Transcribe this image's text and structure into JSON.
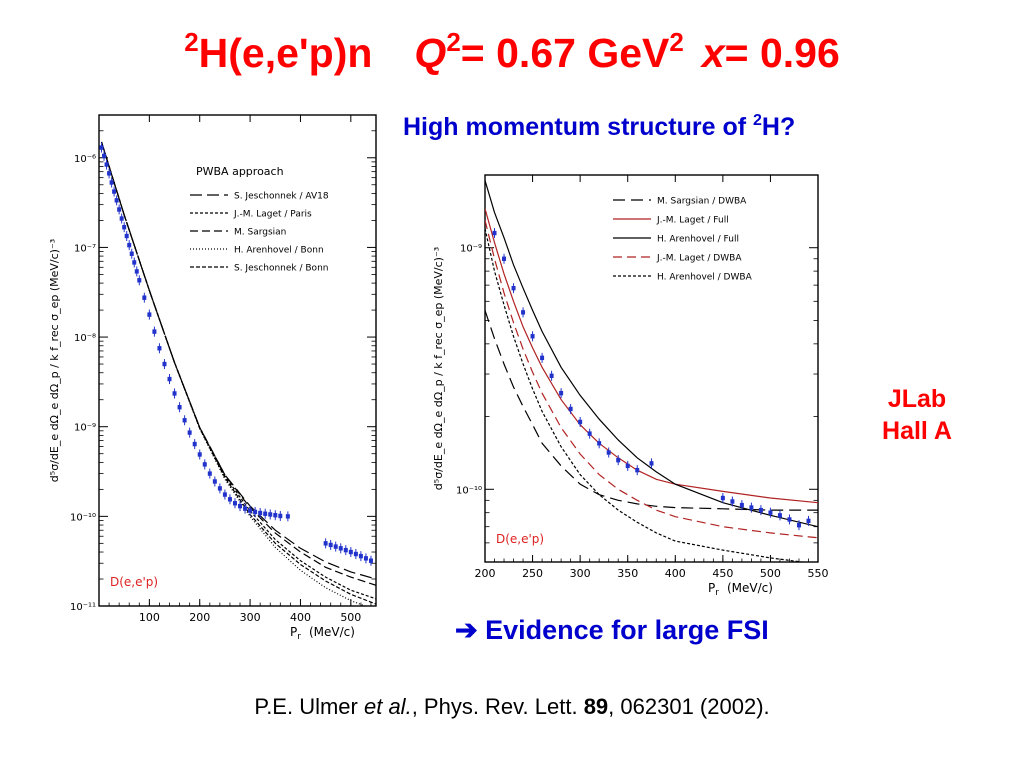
{
  "slide": {
    "title": {
      "pre_sup": "2",
      "reaction": "H(e,e'p)n",
      "q_symbol": "Q",
      "q_sup": "2",
      "q_value": "= 0.67 GeV",
      "q_unit_sup": "2",
      "x_symbol": "x",
      "x_value": "= 0.96"
    },
    "subtitle": {
      "text": "High momentum structure of ",
      "sup": "2",
      "tail": "H?"
    },
    "lab_line1": "JLab",
    "lab_line2": "Hall A",
    "conclusion": {
      "arrow": "➔",
      "text": " Evidence for large FSI"
    },
    "citation": {
      "authors": "P.E. Ulmer ",
      "etal": "et al.",
      "journal": ", Phys. Rev. Lett. ",
      "volume": "89",
      "rest": ", 062301 (2002)."
    }
  },
  "colors": {
    "title_red": "#ff0000",
    "text_blue": "#0000cc",
    "data_blue": "#2233cc",
    "laget_red": "#b22222"
  },
  "chart_data": [
    {
      "type": "line",
      "log_y": true,
      "title": "PWBA approach",
      "xlabel": "P",
      "xlabel_sub": "r",
      "xlabel_unit": "(MeV/c)",
      "ylabel": "d⁵σ/dE_e dΩ_e dΩ_p / k f_rec σ_ep   (MeV/c)⁻³",
      "xlim": [
        0,
        550
      ],
      "ylim": [
        1e-11,
        3e-06
      ],
      "x_ticks": [
        100,
        200,
        300,
        400,
        500
      ],
      "y_ticks": [
        {
          "value": 1e-11,
          "label": "10⁻¹¹"
        },
        {
          "value": 1e-10,
          "label": "10⁻¹⁰"
        },
        {
          "value": 1e-09,
          "label": "10⁻⁹"
        },
        {
          "value": 1e-08,
          "label": "10⁻⁸"
        },
        {
          "value": 1e-07,
          "label": "10⁻⁷"
        },
        {
          "value": 1e-06,
          "label": "10⁻⁶"
        }
      ],
      "corner_label": "D(e,e'p)",
      "legend": "top-right",
      "series": [
        {
          "name": "S. Jeschonnek / AV18",
          "dash": "12,5",
          "x": [
            5,
            50,
            100,
            150,
            200,
            250,
            300,
            350,
            400,
            450,
            500,
            550
          ],
          "y": [
            1.5e-06,
            2.3e-07,
            3.3e-08,
            5.2e-09,
            9.8e-10,
            2.9e-10,
            1.3e-10,
            7e-11,
            4.4e-11,
            3.1e-11,
            2.4e-11,
            2e-11
          ]
        },
        {
          "name": "J.-M. Laget / Paris",
          "dash": "3,2",
          "x": [
            5,
            50,
            100,
            150,
            200,
            250,
            300,
            350,
            400,
            450,
            500,
            550
          ],
          "y": [
            1.5e-06,
            2.3e-07,
            3.3e-08,
            5.2e-09,
            9.8e-10,
            2.8e-10,
            1.15e-10,
            5.5e-11,
            3.2e-11,
            2.1e-11,
            1.5e-11,
            1.2e-11
          ]
        },
        {
          "name": "M. Sargsian",
          "dash": "8,4",
          "x": [
            5,
            50,
            100,
            150,
            200,
            250,
            300,
            350,
            400,
            450,
            500,
            550
          ],
          "y": [
            1.5e-06,
            2.3e-07,
            3.3e-08,
            5.2e-09,
            9.8e-10,
            2.9e-10,
            1.25e-10,
            6.5e-11,
            4e-11,
            2.7e-11,
            2.1e-11,
            1.7e-11
          ]
        },
        {
          "name": "H. Arenhovel / Bonn",
          "dash": "1,2",
          "x": [
            5,
            50,
            100,
            150,
            200,
            250,
            300,
            350,
            400,
            450,
            500,
            550
          ],
          "y": [
            1.5e-06,
            2.3e-07,
            3.3e-08,
            5.2e-09,
            9.5e-10,
            2.6e-10,
            1e-10,
            4.5e-11,
            2.5e-11,
            1.6e-11,
            1.15e-11,
            9e-12
          ]
        },
        {
          "name": "S. Jeschonnek / Bonn",
          "dash": "4,2",
          "x": [
            5,
            50,
            100,
            150,
            200,
            250,
            300,
            350,
            400,
            450,
            500,
            550
          ],
          "y": [
            1.5e-06,
            2.3e-07,
            3.3e-08,
            5.2e-09,
            9.6e-10,
            2.7e-10,
            1.05e-10,
            5e-11,
            2.9e-11,
            1.9e-11,
            1.35e-11,
            1.05e-11
          ]
        }
      ],
      "data": {
        "x": [
          5,
          10,
          15,
          20,
          25,
          30,
          35,
          40,
          45,
          50,
          55,
          60,
          65,
          70,
          75,
          80,
          90,
          100,
          110,
          120,
          130,
          140,
          150,
          160,
          170,
          180,
          190,
          200,
          210,
          220,
          230,
          240,
          250,
          260,
          270,
          280,
          290,
          300,
          310,
          320,
          330,
          340,
          350,
          360,
          375,
          450,
          460,
          470,
          480,
          490,
          500,
          510,
          520,
          530,
          540
        ],
        "y": [
          1.3e-06,
          1.05e-06,
          8.4e-07,
          6.7e-07,
          5.3e-07,
          4.2e-07,
          3.35e-07,
          2.65e-07,
          2.1e-07,
          1.68e-07,
          1.34e-07,
          1.06e-07,
          8.5e-08,
          6.8e-08,
          5.4e-08,
          4.3e-08,
          2.75e-08,
          1.78e-08,
          1.15e-08,
          7.5e-09,
          5e-09,
          3.4e-09,
          2.35e-09,
          1.65e-09,
          1.18e-09,
          8.6e-10,
          6.4e-10,
          4.9e-10,
          3.8e-10,
          3e-10,
          2.45e-10,
          2.05e-10,
          1.75e-10,
          1.55e-10,
          1.4e-10,
          1.3e-10,
          1.22e-10,
          1.16e-10,
          1.12e-10,
          1.09e-10,
          1.07e-10,
          1.05e-10,
          1.03e-10,
          1.01e-10,
          1e-10,
          5e-11,
          4.8e-11,
          4.6e-11,
          4.4e-11,
          4.2e-11,
          4e-11,
          3.8e-11,
          3.6e-11,
          3.4e-11,
          3.2e-11
        ]
      }
    },
    {
      "type": "line",
      "log_y": true,
      "xlabel": "P",
      "xlabel_sub": "r",
      "xlabel_unit": "(MeV/c)",
      "ylabel": "d⁵σ/dE_e dΩ_e dΩ_p / k f_rec σ_ep   (MeV/c)⁻³",
      "xlim": [
        200,
        550
      ],
      "ylim": [
        5e-11,
        2e-09
      ],
      "x_ticks": [
        200,
        250,
        300,
        350,
        400,
        450,
        500,
        550
      ],
      "y_ticks": [
        {
          "value": 1e-10,
          "label": "10⁻¹⁰"
        },
        {
          "value": 1e-09,
          "label": "10⁻⁹"
        }
      ],
      "corner_label": "D(e,e'p)",
      "legend": "top-right",
      "series": [
        {
          "name": "M. Sargsian / DWBA",
          "dash": "12,6",
          "color": "#000000",
          "x": [
            200,
            210,
            220,
            230,
            240,
            250,
            260,
            280,
            300,
            320,
            340,
            360,
            380,
            400,
            450,
            500,
            550
          ],
          "y": [
            5.5e-10,
            4.2e-10,
            3.3e-10,
            2.65e-10,
            2.2e-10,
            1.85e-10,
            1.55e-10,
            1.25e-10,
            1.05e-10,
            9.5e-11,
            9e-11,
            8.7e-11,
            8.5e-11,
            8.4e-11,
            8.3e-11,
            8.2e-11,
            8.2e-11
          ]
        },
        {
          "name": "J.-M. Laget / Full",
          "dash": "",
          "color": "#b22222",
          "x": [
            200,
            210,
            220,
            230,
            240,
            250,
            260,
            280,
            300,
            320,
            340,
            360,
            380,
            400,
            450,
            500,
            550
          ],
          "y": [
            1.45e-09,
            1.05e-09,
            7.8e-10,
            6e-10,
            4.7e-10,
            3.85e-10,
            3.2e-10,
            2.35e-10,
            1.85e-10,
            1.55e-10,
            1.35e-10,
            1.2e-10,
            1.1e-10,
            1.05e-10,
            9.8e-11,
            9.2e-11,
            8.8e-11
          ]
        },
        {
          "name": "H. Arenhovel / Full",
          "dash": "",
          "color": "#000000",
          "x": [
            200,
            210,
            220,
            230,
            240,
            250,
            260,
            280,
            300,
            320,
            340,
            360,
            380,
            400,
            450,
            500,
            550
          ],
          "y": [
            1.9e-09,
            1.4e-09,
            1.1e-09,
            8.5e-10,
            6.8e-10,
            5.5e-10,
            4.5e-10,
            3.2e-10,
            2.45e-10,
            1.95e-10,
            1.6e-10,
            1.35e-10,
            1.18e-10,
            1.05e-10,
            8.8e-11,
            7.8e-11,
            7e-11
          ]
        },
        {
          "name": "J.-M. Laget / DWBA",
          "dash": "9,5",
          "color": "#b22222",
          "x": [
            200,
            210,
            220,
            230,
            240,
            250,
            260,
            280,
            300,
            320,
            340,
            360,
            380,
            400,
            450,
            500,
            550
          ],
          "y": [
            1.3e-09,
            9e-10,
            6.5e-10,
            4.9e-10,
            3.8e-10,
            3.05e-10,
            2.5e-10,
            1.8e-10,
            1.4e-10,
            1.15e-10,
            1e-10,
            9e-11,
            8.2e-11,
            7.7e-11,
            7e-11,
            6.6e-11,
            6.3e-11
          ]
        },
        {
          "name": "H. Arenhovel / DWBA",
          "dash": "3,2",
          "color": "#000000",
          "x": [
            200,
            210,
            220,
            230,
            240,
            250,
            260,
            280,
            300,
            320,
            340,
            360,
            380,
            400,
            450,
            500,
            550
          ],
          "y": [
            1.2e-09,
            8e-10,
            5.8e-10,
            4.3e-10,
            3.3e-10,
            2.6e-10,
            2.1e-10,
            1.5e-10,
            1.15e-10,
            9.5e-11,
            8.2e-11,
            7.3e-11,
            6.6e-11,
            6.1e-11,
            5.6e-11,
            5.2e-11,
            4.9e-11
          ]
        }
      ],
      "data": {
        "x": [
          210,
          220,
          230,
          240,
          250,
          260,
          270,
          280,
          290,
          300,
          310,
          320,
          330,
          340,
          350,
          360,
          375,
          450,
          460,
          470,
          480,
          490,
          500,
          510,
          520,
          530,
          540
        ],
        "y": [
          1.15e-09,
          9e-10,
          6.8e-10,
          5.4e-10,
          4.3e-10,
          3.5e-10,
          2.95e-10,
          2.5e-10,
          2.15e-10,
          1.9e-10,
          1.7e-10,
          1.55e-10,
          1.42e-10,
          1.32e-10,
          1.25e-10,
          1.2e-10,
          1.28e-10,
          9.2e-11,
          8.9e-11,
          8.6e-11,
          8.4e-11,
          8.2e-11,
          8e-11,
          7.8e-11,
          7.5e-11,
          7.1e-11,
          7.4e-11
        ]
      }
    }
  ]
}
